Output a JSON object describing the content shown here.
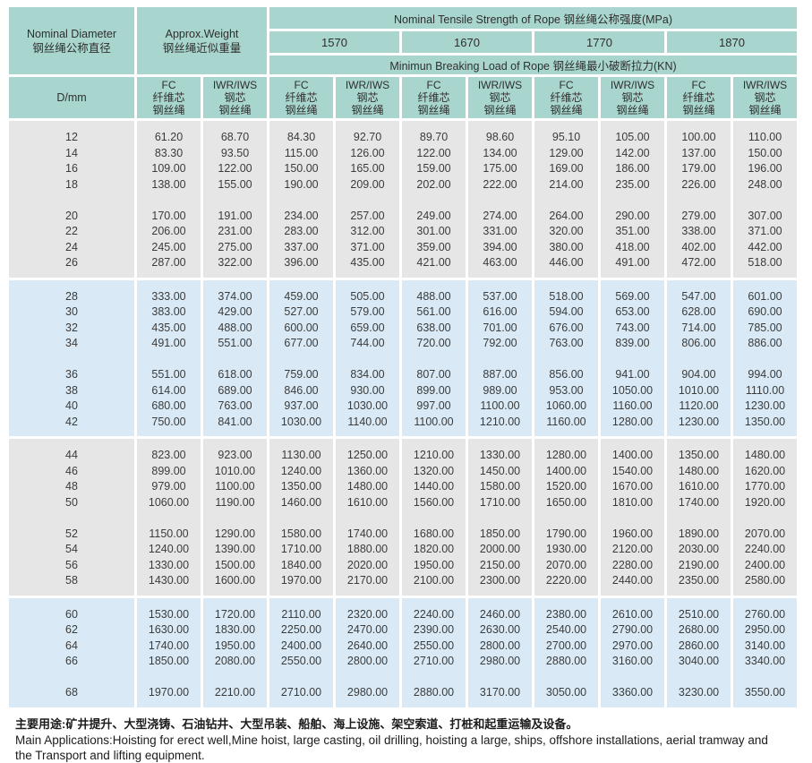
{
  "colors": {
    "header_teal": "#a8d5cd",
    "block_gray": "#e6e6e6",
    "block_blue": "#d9eaf6",
    "text": "#3b3b3b"
  },
  "table": {
    "header": {
      "diameter_en": "Nominal Diameter",
      "diameter_zh": "钢丝绳公称直径",
      "weight_en": "Approx.Weight",
      "weight_zh": "钢丝绳近似重量",
      "tensile_title": "Nominal Tensile Strength of Rope  钢丝绳公称强度(MPa)",
      "strengths": [
        "1570",
        "1670",
        "1770",
        "1870"
      ],
      "breaking_title": "Minimun Breaking Load of Rope  钢丝绳最小破断拉力(KN)",
      "dmm_label": "D/mm",
      "fc_lines": [
        "FC",
        "纤维芯",
        "钢丝绳"
      ],
      "iwr_lines": [
        "IWR/IWS",
        "钢芯",
        "钢丝绳"
      ]
    },
    "blocks": [
      {
        "tone": "gray",
        "groups": [
          [
            [
              "12",
              "61.20",
              "68.70",
              "84.30",
              "92.70",
              "89.70",
              "98.60",
              "95.10",
              "105.00",
              "100.00",
              "110.00"
            ],
            [
              "14",
              "83.30",
              "93.50",
              "115.00",
              "126.00",
              "122.00",
              "134.00",
              "129.00",
              "142.00",
              "137.00",
              "150.00"
            ],
            [
              "16",
              "109.00",
              "122.00",
              "150.00",
              "165.00",
              "159.00",
              "175.00",
              "169.00",
              "186.00",
              "179.00",
              "196.00"
            ],
            [
              "18",
              "138.00",
              "155.00",
              "190.00",
              "209.00",
              "202.00",
              "222.00",
              "214.00",
              "235.00",
              "226.00",
              "248.00"
            ]
          ],
          [
            [
              "20",
              "170.00",
              "191.00",
              "234.00",
              "257.00",
              "249.00",
              "274.00",
              "264.00",
              "290.00",
              "279.00",
              "307.00"
            ],
            [
              "22",
              "206.00",
              "231.00",
              "283.00",
              "312.00",
              "301.00",
              "331.00",
              "320.00",
              "351.00",
              "338.00",
              "371.00"
            ],
            [
              "24",
              "245.00",
              "275.00",
              "337.00",
              "371.00",
              "359.00",
              "394.00",
              "380.00",
              "418.00",
              "402.00",
              "442.00"
            ],
            [
              "26",
              "287.00",
              "322.00",
              "396.00",
              "435.00",
              "421.00",
              "463.00",
              "446.00",
              "491.00",
              "472.00",
              "518.00"
            ]
          ]
        ]
      },
      {
        "tone": "blue",
        "groups": [
          [
            [
              "28",
              "333.00",
              "374.00",
              "459.00",
              "505.00",
              "488.00",
              "537.00",
              "518.00",
              "569.00",
              "547.00",
              "601.00"
            ],
            [
              "30",
              "383.00",
              "429.00",
              "527.00",
              "579.00",
              "561.00",
              "616.00",
              "594.00",
              "653.00",
              "628.00",
              "690.00"
            ],
            [
              "32",
              "435.00",
              "488.00",
              "600.00",
              "659.00",
              "638.00",
              "701.00",
              "676.00",
              "743.00",
              "714.00",
              "785.00"
            ],
            [
              "34",
              "491.00",
              "551.00",
              "677.00",
              "744.00",
              "720.00",
              "792.00",
              "763.00",
              "839.00",
              "806.00",
              "886.00"
            ]
          ],
          [
            [
              "36",
              "551.00",
              "618.00",
              "759.00",
              "834.00",
              "807.00",
              "887.00",
              "856.00",
              "941.00",
              "904.00",
              "994.00"
            ],
            [
              "38",
              "614.00",
              "689.00",
              "846.00",
              "930.00",
              "899.00",
              "989.00",
              "953.00",
              "1050.00",
              "1010.00",
              "1110.00"
            ],
            [
              "40",
              "680.00",
              "763.00",
              "937.00",
              "1030.00",
              "997.00",
              "1100.00",
              "1060.00",
              "1160.00",
              "1120.00",
              "1230.00"
            ],
            [
              "42",
              "750.00",
              "841.00",
              "1030.00",
              "1140.00",
              "1100.00",
              "1210.00",
              "1160.00",
              "1280.00",
              "1230.00",
              "1350.00"
            ]
          ]
        ]
      },
      {
        "tone": "gray",
        "groups": [
          [
            [
              "44",
              "823.00",
              "923.00",
              "1130.00",
              "1250.00",
              "1210.00",
              "1330.00",
              "1280.00",
              "1400.00",
              "1350.00",
              "1480.00"
            ],
            [
              "46",
              "899.00",
              "1010.00",
              "1240.00",
              "1360.00",
              "1320.00",
              "1450.00",
              "1400.00",
              "1540.00",
              "1480.00",
              "1620.00"
            ],
            [
              "48",
              "979.00",
              "1100.00",
              "1350.00",
              "1480.00",
              "1440.00",
              "1580.00",
              "1520.00",
              "1670.00",
              "1610.00",
              "1770.00"
            ],
            [
              "50",
              "1060.00",
              "1190.00",
              "1460.00",
              "1610.00",
              "1560.00",
              "1710.00",
              "1650.00",
              "1810.00",
              "1740.00",
              "1920.00"
            ]
          ],
          [
            [
              "52",
              "1150.00",
              "1290.00",
              "1580.00",
              "1740.00",
              "1680.00",
              "1850.00",
              "1790.00",
              "1960.00",
              "1890.00",
              "2070.00"
            ],
            [
              "54",
              "1240.00",
              "1390.00",
              "1710.00",
              "1880.00",
              "1820.00",
              "2000.00",
              "1930.00",
              "2120.00",
              "2030.00",
              "2240.00"
            ],
            [
              "56",
              "1330.00",
              "1500.00",
              "1840.00",
              "2020.00",
              "1950.00",
              "2150.00",
              "2070.00",
              "2280.00",
              "2190.00",
              "2400.00"
            ],
            [
              "58",
              "1430.00",
              "1600.00",
              "1970.00",
              "2170.00",
              "2100.00",
              "2300.00",
              "2220.00",
              "2440.00",
              "2350.00",
              "2580.00"
            ]
          ]
        ]
      },
      {
        "tone": "blue",
        "groups": [
          [
            [
              "60",
              "1530.00",
              "1720.00",
              "2110.00",
              "2320.00",
              "2240.00",
              "2460.00",
              "2380.00",
              "2610.00",
              "2510.00",
              "2760.00"
            ],
            [
              "62",
              "1630.00",
              "1830.00",
              "2250.00",
              "2470.00",
              "2390.00",
              "2630.00",
              "2540.00",
              "2790.00",
              "2680.00",
              "2950.00"
            ],
            [
              "64",
              "1740.00",
              "1950.00",
              "2400.00",
              "2640.00",
              "2550.00",
              "2800.00",
              "2700.00",
              "2970.00",
              "2860.00",
              "3140.00"
            ],
            [
              "66",
              "1850.00",
              "2080.00",
              "2550.00",
              "2800.00",
              "2710.00",
              "2980.00",
              "2880.00",
              "3160.00",
              "3040.00",
              "3340.00"
            ]
          ],
          [
            [
              "68",
              "1970.00",
              "2210.00",
              "2710.00",
              "2980.00",
              "2880.00",
              "3170.00",
              "3050.00",
              "3360.00",
              "3230.00",
              "3550.00"
            ]
          ]
        ]
      }
    ]
  },
  "footer": {
    "zh": "主要用途:矿井提升、大型浇铸、石油钻井、大型吊装、船舶、海上设施、架空索道、打桩和起重运输及设备。",
    "en_line1": "Main Applications:Hoisting for erect well,Mine hoist, large casting, oil drilling, hoisting a large, ships, offshore installations, aerial tramway and",
    "en_line2": "the Transport and lifting equipment."
  }
}
